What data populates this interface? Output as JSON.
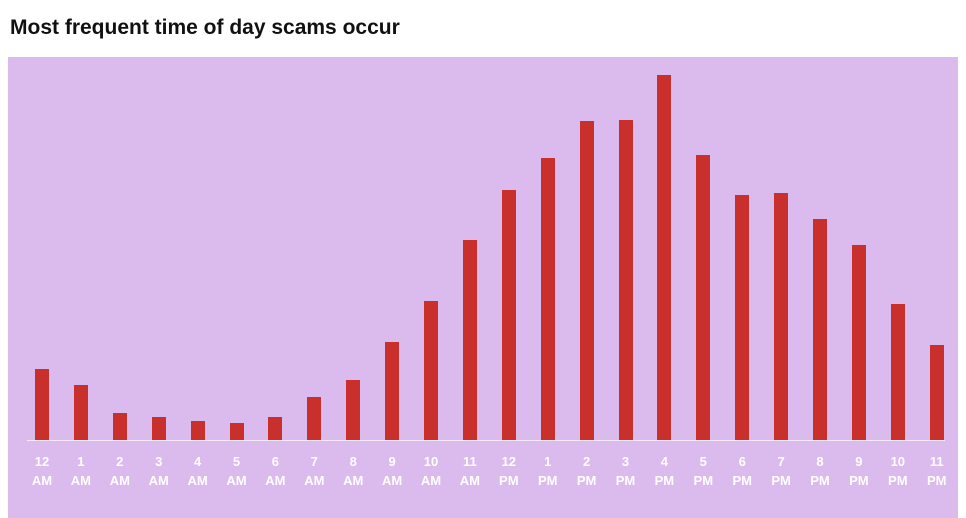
{
  "chart_data": {
    "type": "bar",
    "title": "Most frequent time of day scams occur",
    "categories": [
      "12 AM",
      "1 AM",
      "2 AM",
      "3 AM",
      "4 AM",
      "5 AM",
      "6 AM",
      "7 AM",
      "8 AM",
      "9 AM",
      "10 AM",
      "11 AM",
      "12 PM",
      "1 PM",
      "2 PM",
      "3 PM",
      "4 PM",
      "5 PM",
      "6 PM",
      "7 PM",
      "8 PM",
      "9 PM",
      "10 PM",
      "11 PM"
    ],
    "values": [
      19.5,
      15,
      7.4,
      6.3,
      5.2,
      4.7,
      6.3,
      11.8,
      16.4,
      26.8,
      38,
      54.8,
      68.5,
      77.3,
      87.4,
      87.7,
      100,
      78,
      67,
      67.7,
      60.5,
      53.4,
      37.3,
      26
    ],
    "color": "#c9302c",
    "ylim": [
      0,
      100
    ]
  }
}
